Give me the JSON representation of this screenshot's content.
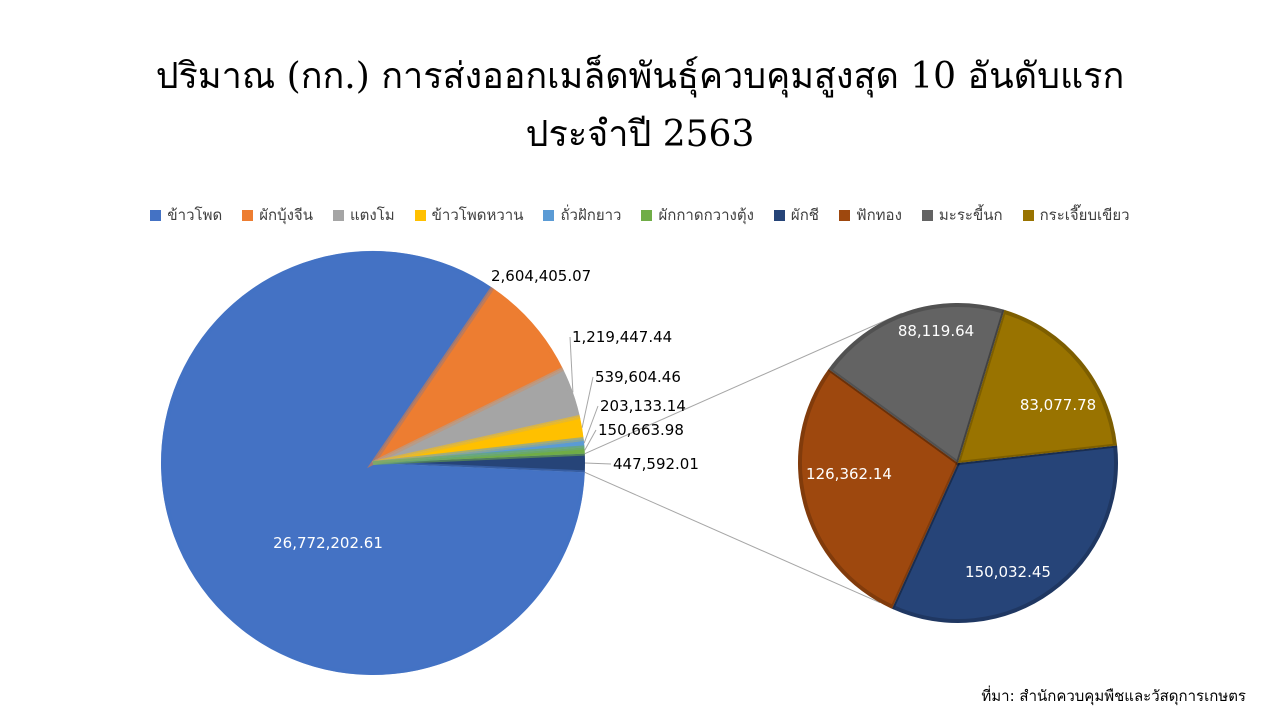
{
  "chart_data": {
    "type": "pie",
    "subtype": "pie-of-pie",
    "title_line1": "ปริมาณ (กก.) การส่งออกเมล็ดพันธุ์ควบคุมสูงสุด 10 อันดับแรก",
    "title_line2": "ประจำปี 2563",
    "legend_position": "top",
    "series": [
      {
        "name": "ข้าวโพด",
        "value": 26772202.61,
        "label": "26,772,202.61",
        "color": "#4472C4"
      },
      {
        "name": "ผักบุ้งจีน",
        "value": 2604405.07,
        "label": "2,604,405.07",
        "color": "#ED7D31"
      },
      {
        "name": "แตงโม",
        "value": 1219447.44,
        "label": "1,219,447.44",
        "color": "#A5A5A5"
      },
      {
        "name": "ข้าวโพดหวาน",
        "value": 539604.46,
        "label": "539,604.46",
        "color": "#FFC000"
      },
      {
        "name": "ถั่วฝักยาว",
        "value": 203133.14,
        "label": "203,133.14",
        "color": "#5B9BD5"
      },
      {
        "name": "ผักกาดกวางตุ้ง",
        "value": 150663.98,
        "label": "150,663.98",
        "color": "#70AD47"
      },
      {
        "name": "ผักชี",
        "value": 150032.45,
        "label": "150,032.45",
        "color": "#264478"
      },
      {
        "name": "ฟักทอง",
        "value": 126362.14,
        "label": "126,362.14",
        "color": "#9E480E"
      },
      {
        "name": "มะระขี้นก",
        "value": 88119.64,
        "label": "88,119.64",
        "color": "#636363"
      },
      {
        "name": "กระเจี๊ยบเขียว",
        "value": 83077.78,
        "label": "83,077.78",
        "color": "#997300"
      }
    ],
    "other_slice": {
      "label": "447,592.01",
      "value": 447592.01
    }
  },
  "source_text": "ที่มา: สำนักควบคุมพืชและวัสดุการเกษตร"
}
